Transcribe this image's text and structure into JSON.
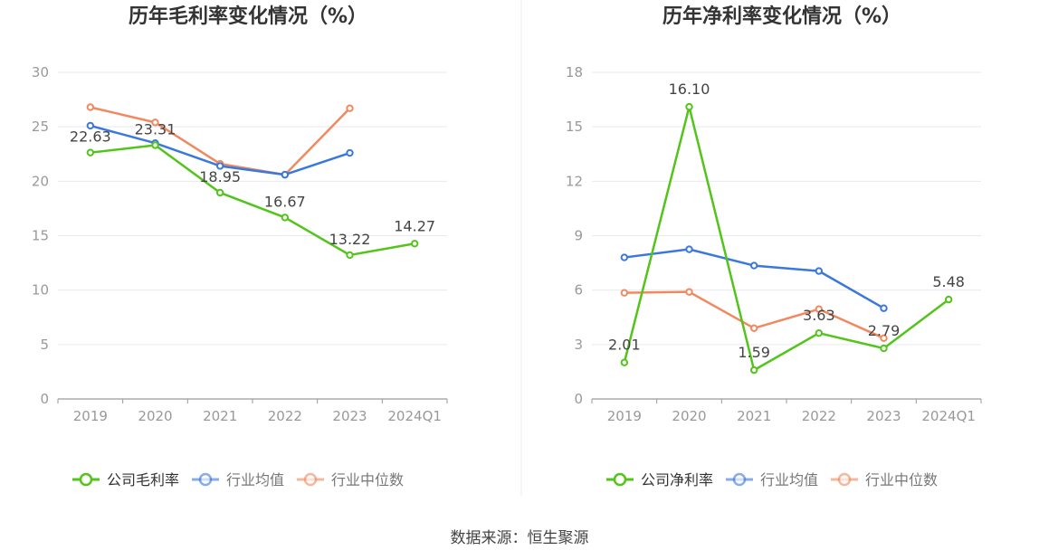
{
  "source_text": "数据来源：恒生聚源",
  "colors": {
    "company": "#52c41a",
    "avg": "#3b78dc",
    "median": "#f0895f",
    "grid": "#e6e9f0",
    "axis": "#9a9a9a",
    "label": "#999999",
    "title": "#333333"
  },
  "chart_data": [
    {
      "type": "line",
      "title": "历年毛利率变化情况（%）",
      "categories": [
        "2019",
        "2020",
        "2021",
        "2022",
        "2023",
        "2024Q1"
      ],
      "ylim": [
        0,
        30
      ],
      "yticks": [
        0,
        5,
        10,
        15,
        20,
        25,
        30
      ],
      "series": [
        {
          "name": "公司毛利率",
          "color": "#52c41a",
          "values": [
            22.63,
            23.31,
            18.95,
            16.67,
            13.22,
            14.27
          ],
          "labels": [
            "22.63",
            "23.31",
            "18.95",
            "16.67",
            "13.22",
            "14.27"
          ]
        },
        {
          "name": "行业均值",
          "color": "#3b78dc",
          "values": [
            25.1,
            23.5,
            21.4,
            20.6,
            22.6,
            null
          ]
        },
        {
          "name": "行业中位数",
          "color": "#f0895f",
          "values": [
            26.8,
            25.4,
            21.6,
            20.6,
            26.7,
            null
          ]
        }
      ]
    },
    {
      "type": "line",
      "title": "历年净利率变化情况（%）",
      "categories": [
        "2019",
        "2020",
        "2021",
        "2022",
        "2023",
        "2024Q1"
      ],
      "ylim": [
        0,
        18
      ],
      "yticks": [
        0,
        3,
        6,
        9,
        12,
        15,
        18
      ],
      "series": [
        {
          "name": "公司净利率",
          "color": "#52c41a",
          "values": [
            2.01,
            16.1,
            1.59,
            3.63,
            2.79,
            5.48
          ],
          "labels": [
            "2.01",
            "16.10",
            "1.59",
            "3.63",
            "2.79",
            "5.48"
          ]
        },
        {
          "name": "行业均值",
          "color": "#3b78dc",
          "values": [
            7.8,
            8.25,
            7.35,
            7.05,
            5.0,
            null
          ]
        },
        {
          "name": "行业中位数",
          "color": "#f0895f",
          "values": [
            5.85,
            5.9,
            3.9,
            4.95,
            3.35,
            null
          ]
        }
      ]
    }
  ]
}
